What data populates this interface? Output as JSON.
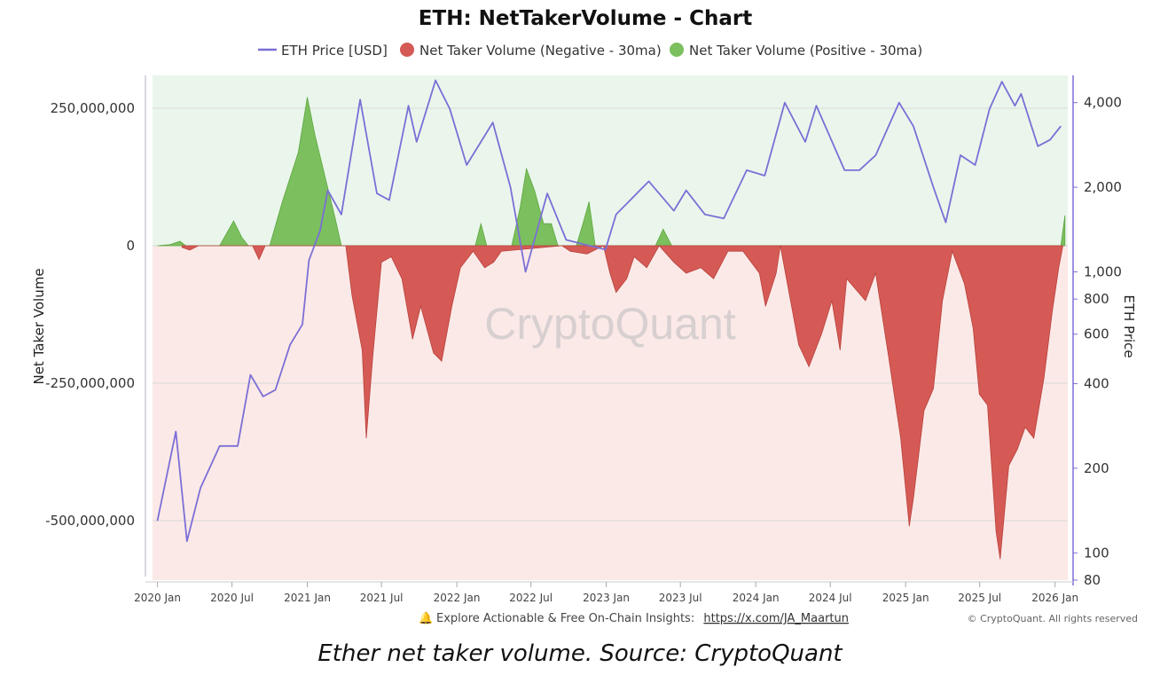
{
  "chart_data": {
    "type": "bar",
    "title": "ETH: NetTakerVolume - Chart",
    "ylabel": "Net Taker Volume",
    "y2label": "ETH Price",
    "ylim": [
      -600000000,
      300000000
    ],
    "y2_scale": "log",
    "y2lim": [
      80,
      5000
    ],
    "grid": true,
    "legend_position": "top-center",
    "legend": [
      {
        "name": "ETH Price [USD]",
        "marker": "line",
        "color": "#7b6fd6"
      },
      {
        "name": "Net Taker Volume (Negative - 30ma)",
        "marker": "dot",
        "color": "#d55a55"
      },
      {
        "name": "Net Taker Volume (Positive - 30ma)",
        "marker": "dot",
        "color": "#7cbf5e"
      }
    ],
    "y_ticks": [
      {
        "value": 250000000,
        "label": "250,000,000"
      },
      {
        "value": 0,
        "label": "0"
      },
      {
        "value": -250000000,
        "label": "-250,000,000"
      },
      {
        "value": -500000000,
        "label": "-500,000,000"
      }
    ],
    "y2_ticks": [
      {
        "value": 4000,
        "label": "4,000"
      },
      {
        "value": 2000,
        "label": "2,000"
      },
      {
        "value": 1000,
        "label": "1,000"
      },
      {
        "value": 800,
        "label": "800"
      },
      {
        "value": 600,
        "label": "600"
      },
      {
        "value": 400,
        "label": "400"
      },
      {
        "value": 200,
        "label": "200"
      },
      {
        "value": 100,
        "label": "100"
      },
      {
        "value": 80,
        "label": "80"
      }
    ],
    "x_ticks": [
      {
        "date": "2020-01-01",
        "label": "2020 Jan"
      },
      {
        "date": "2020-07-01",
        "label": "2020 Jul"
      },
      {
        "date": "2021-01-01",
        "label": "2021 Jan"
      },
      {
        "date": "2021-07-01",
        "label": "2021 Jul"
      },
      {
        "date": "2022-01-01",
        "label": "2022 Jan"
      },
      {
        "date": "2022-07-01",
        "label": "2022 Jul"
      },
      {
        "date": "2023-01-01",
        "label": "2023 Jan"
      },
      {
        "date": "2023-07-01",
        "label": "2023 Jul"
      },
      {
        "date": "2024-01-01",
        "label": "2024 Jan"
      },
      {
        "date": "2024-07-01",
        "label": "2024 Jul"
      },
      {
        "date": "2025-01-01",
        "label": "2025 Jan"
      },
      {
        "date": "2025-07-01",
        "label": "2025 Jul"
      },
      {
        "date": "2026-01-01",
        "label": "2026 Jan"
      }
    ],
    "x_range": [
      "2019-12-20",
      "2026-02-01"
    ],
    "series": [
      {
        "name": "ETH Price [USD]",
        "color": "#7b6fd6",
        "points": [
          [
            "2020-01-01",
            130
          ],
          [
            "2020-02-15",
            270
          ],
          [
            "2020-03-13",
            110
          ],
          [
            "2020-04-15",
            170
          ],
          [
            "2020-06-01",
            240
          ],
          [
            "2020-07-15",
            240
          ],
          [
            "2020-08-15",
            430
          ],
          [
            "2020-09-15",
            360
          ],
          [
            "2020-10-15",
            380
          ],
          [
            "2020-11-20",
            550
          ],
          [
            "2020-12-20",
            650
          ],
          [
            "2021-01-05",
            1100
          ],
          [
            "2021-02-01",
            1400
          ],
          [
            "2021-02-20",
            1950
          ],
          [
            "2021-03-25",
            1600
          ],
          [
            "2021-05-10",
            4100
          ],
          [
            "2021-06-20",
            1900
          ],
          [
            "2021-07-20",
            1800
          ],
          [
            "2021-09-05",
            3900
          ],
          [
            "2021-09-25",
            2900
          ],
          [
            "2021-11-10",
            4800
          ],
          [
            "2021-12-15",
            3800
          ],
          [
            "2022-01-25",
            2400
          ],
          [
            "2022-03-30",
            3400
          ],
          [
            "2022-05-12",
            2000
          ],
          [
            "2022-06-18",
            1000
          ],
          [
            "2022-08-10",
            1900
          ],
          [
            "2022-09-25",
            1300
          ],
          [
            "2022-11-10",
            1250
          ],
          [
            "2022-12-30",
            1200
          ],
          [
            "2023-01-25",
            1600
          ],
          [
            "2023-04-15",
            2100
          ],
          [
            "2023-06-15",
            1650
          ],
          [
            "2023-07-15",
            1950
          ],
          [
            "2023-08-30",
            1600
          ],
          [
            "2023-10-15",
            1550
          ],
          [
            "2023-12-10",
            2300
          ],
          [
            "2024-01-23",
            2200
          ],
          [
            "2024-03-12",
            4000
          ],
          [
            "2024-05-01",
            2900
          ],
          [
            "2024-05-28",
            3900
          ],
          [
            "2024-08-05",
            2300
          ],
          [
            "2024-09-10",
            2300
          ],
          [
            "2024-10-20",
            2600
          ],
          [
            "2024-12-16",
            4000
          ],
          [
            "2025-01-20",
            3300
          ],
          [
            "2025-03-10",
            2000
          ],
          [
            "2025-04-09",
            1500
          ],
          [
            "2025-05-15",
            2600
          ],
          [
            "2025-06-20",
            2400
          ],
          [
            "2025-07-25",
            3800
          ],
          [
            "2025-08-24",
            4750
          ],
          [
            "2025-09-25",
            3900
          ],
          [
            "2025-10-10",
            4300
          ],
          [
            "2025-11-20",
            2800
          ],
          [
            "2025-12-20",
            2950
          ],
          [
            "2026-01-15",
            3300
          ]
        ]
      },
      {
        "name": "Net Taker Volume (Negative - 30ma)",
        "color": "#d55a55",
        "points": [
          [
            "2020-03-01",
            -3000000
          ],
          [
            "2020-03-20",
            -8000000
          ],
          [
            "2020-04-10",
            0
          ],
          [
            "2020-08-20",
            0
          ],
          [
            "2020-09-05",
            -25000000
          ],
          [
            "2020-09-20",
            0
          ],
          [
            "2021-04-05",
            0
          ],
          [
            "2021-04-20",
            -90000000
          ],
          [
            "2021-05-15",
            -190000000
          ],
          [
            "2021-05-25",
            -350000000
          ],
          [
            "2021-06-10",
            -200000000
          ],
          [
            "2021-07-01",
            -30000000
          ],
          [
            "2021-07-25",
            -20000000
          ],
          [
            "2021-08-20",
            -60000000
          ],
          [
            "2021-09-15",
            -170000000
          ],
          [
            "2021-10-05",
            -110000000
          ],
          [
            "2021-11-05",
            -195000000
          ],
          [
            "2021-11-25",
            -210000000
          ],
          [
            "2021-12-20",
            -110000000
          ],
          [
            "2022-01-10",
            -40000000
          ],
          [
            "2022-02-10",
            -10000000
          ],
          [
            "2022-03-10",
            -40000000
          ],
          [
            "2022-04-01",
            -30000000
          ],
          [
            "2022-04-20",
            -10000000
          ],
          [
            "2022-09-15",
            0
          ],
          [
            "2022-10-05",
            -10000000
          ],
          [
            "2022-11-15",
            -15000000
          ],
          [
            "2022-12-25",
            0
          ],
          [
            "2023-01-10",
            -50000000
          ],
          [
            "2023-01-25",
            -85000000
          ],
          [
            "2023-02-20",
            -60000000
          ],
          [
            "2023-03-10",
            -20000000
          ],
          [
            "2023-04-10",
            -40000000
          ],
          [
            "2023-05-10",
            0
          ],
          [
            "2023-06-15",
            -30000000
          ],
          [
            "2023-07-15",
            -50000000
          ],
          [
            "2023-08-20",
            -40000000
          ],
          [
            "2023-09-20",
            -60000000
          ],
          [
            "2023-10-25",
            -10000000
          ],
          [
            "2023-12-01",
            -10000000
          ],
          [
            "2024-01-10",
            -50000000
          ],
          [
            "2024-01-25",
            -110000000
          ],
          [
            "2024-02-20",
            -50000000
          ],
          [
            "2024-03-01",
            0
          ],
          [
            "2024-04-15",
            -180000000
          ],
          [
            "2024-05-10",
            -220000000
          ],
          [
            "2024-06-10",
            -160000000
          ],
          [
            "2024-07-05",
            -100000000
          ],
          [
            "2024-07-25",
            -190000000
          ],
          [
            "2024-08-10",
            -60000000
          ],
          [
            "2024-09-25",
            -100000000
          ],
          [
            "2024-10-20",
            -50000000
          ],
          [
            "2024-11-20",
            -200000000
          ],
          [
            "2024-12-20",
            -350000000
          ],
          [
            "2025-01-10",
            -510000000
          ],
          [
            "2025-01-20",
            -460000000
          ],
          [
            "2025-02-15",
            -300000000
          ],
          [
            "2025-03-10",
            -260000000
          ],
          [
            "2025-04-01",
            -100000000
          ],
          [
            "2025-04-25",
            -10000000
          ],
          [
            "2025-05-25",
            -70000000
          ],
          [
            "2025-06-15",
            -150000000
          ],
          [
            "2025-06-30",
            -270000000
          ],
          [
            "2025-07-20",
            -290000000
          ],
          [
            "2025-08-10",
            -520000000
          ],
          [
            "2025-08-20",
            -570000000
          ],
          [
            "2025-09-10",
            -400000000
          ],
          [
            "2025-10-01",
            -370000000
          ],
          [
            "2025-10-20",
            -330000000
          ],
          [
            "2025-11-10",
            -350000000
          ],
          [
            "2025-12-05",
            -240000000
          ],
          [
            "2025-12-25",
            -120000000
          ],
          [
            "2026-01-10",
            -40000000
          ],
          [
            "2026-01-20",
            0
          ]
        ]
      },
      {
        "name": "Net Taker Volume (Positive - 30ma)",
        "color": "#7cbf5e",
        "points": [
          [
            "2020-01-01",
            0
          ],
          [
            "2020-02-01",
            2000000
          ],
          [
            "2020-02-25",
            8000000
          ],
          [
            "2020-03-10",
            0
          ],
          [
            "2020-06-01",
            0
          ],
          [
            "2020-07-05",
            45000000
          ],
          [
            "2020-07-25",
            15000000
          ],
          [
            "2020-08-10",
            0
          ],
          [
            "2020-10-01",
            0
          ],
          [
            "2020-11-01",
            80000000
          ],
          [
            "2020-12-10",
            170000000
          ],
          [
            "2021-01-01",
            270000000
          ],
          [
            "2021-01-20",
            200000000
          ],
          [
            "2021-02-15",
            120000000
          ],
          [
            "2021-03-10",
            50000000
          ],
          [
            "2021-03-25",
            0
          ],
          [
            "2022-02-15",
            0
          ],
          [
            "2022-03-01",
            40000000
          ],
          [
            "2022-03-15",
            0
          ],
          [
            "2022-05-15",
            0
          ],
          [
            "2022-06-05",
            70000000
          ],
          [
            "2022-06-20",
            140000000
          ],
          [
            "2022-07-10",
            100000000
          ],
          [
            "2022-08-01",
            40000000
          ],
          [
            "2022-08-20",
            40000000
          ],
          [
            "2022-09-05",
            0
          ],
          [
            "2022-10-20",
            0
          ],
          [
            "2022-11-05",
            40000000
          ],
          [
            "2022-11-20",
            80000000
          ],
          [
            "2022-12-05",
            0
          ],
          [
            "2023-05-01",
            0
          ],
          [
            "2023-05-20",
            30000000
          ],
          [
            "2023-06-10",
            0
          ],
          [
            "2026-01-15",
            0
          ],
          [
            "2026-01-25",
            55000000
          ]
        ]
      }
    ],
    "watermark": "CryptoQuant"
  },
  "footer": {
    "bell_icon": "bell-icon",
    "text": "Explore Actionable & Free On-Chain Insights:",
    "link": "https://x.com/JA_Maartun",
    "copyright": "© CryptoQuant. All rights reserved"
  },
  "caption": "Ether net taker volume. Source: CryptoQuant"
}
